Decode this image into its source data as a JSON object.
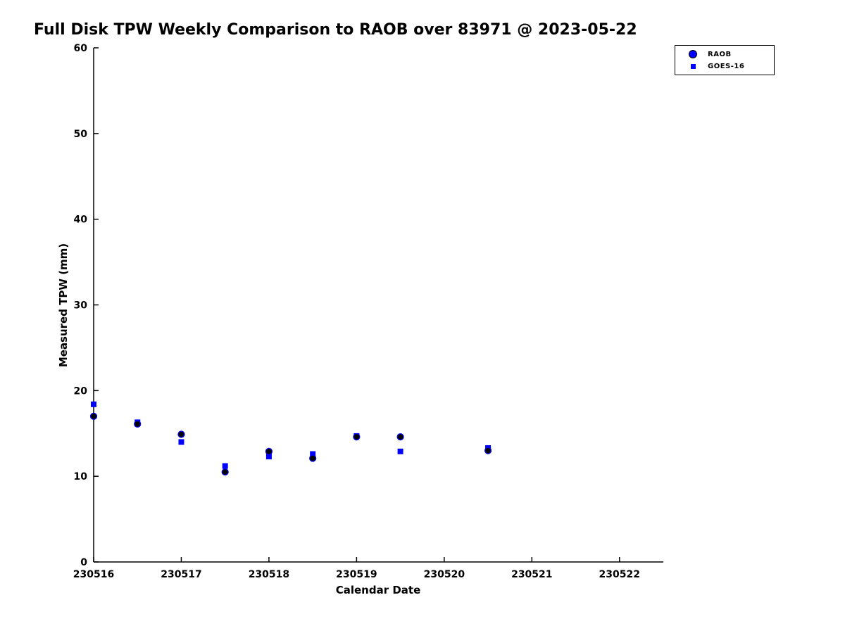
{
  "figure": {
    "background": "#ffffff"
  },
  "chart_data": {
    "type": "scatter",
    "title": "Full Disk TPW Weekly Comparison to RAOB over 83971 @ 2023-05-22",
    "xlabel": "Calendar Date",
    "ylabel": "Measured TPW (mm)",
    "xlim": [
      230516,
      230522.5
    ],
    "ylim": [
      0,
      60
    ],
    "grid": false,
    "legend": {
      "position": "top-right",
      "border": true,
      "entries": [
        "RAOB",
        "GOES-16"
      ]
    },
    "xticks": {
      "values": [
        230516,
        230517,
        230518,
        230519,
        230520,
        230521,
        230522
      ],
      "labels": [
        "230516",
        "230517",
        "230518",
        "230519",
        "230520",
        "230521",
        "230522"
      ]
    },
    "yticks": {
      "values": [
        0,
        10,
        20,
        30,
        40,
        50,
        60
      ],
      "labels": [
        "0",
        "10",
        "20",
        "30",
        "40",
        "50",
        "60"
      ]
    },
    "colors": {
      "raob_edge": "#0000ff",
      "raob_fill": "#000000",
      "goes16": "#0000ff",
      "axis": "#000000"
    },
    "series": [
      {
        "name": "RAOB",
        "marker": "circle",
        "x": [
          230516.0,
          230516.5,
          230517.0,
          230517.5,
          230518.0,
          230518.5,
          230519.0,
          230519.5,
          230520.5
        ],
        "y": [
          17.0,
          16.1,
          14.9,
          10.5,
          12.9,
          12.1,
          14.6,
          14.6,
          13.0
        ]
      },
      {
        "name": "GOES-16",
        "marker": "square",
        "x": [
          230516.0,
          230516.5,
          230517.0,
          230517.5,
          230518.0,
          230518.5,
          230519.0,
          230519.5,
          230520.5
        ],
        "y": [
          18.4,
          16.3,
          14.0,
          11.2,
          12.3,
          12.6,
          14.7,
          12.9,
          13.3
        ]
      }
    ]
  }
}
